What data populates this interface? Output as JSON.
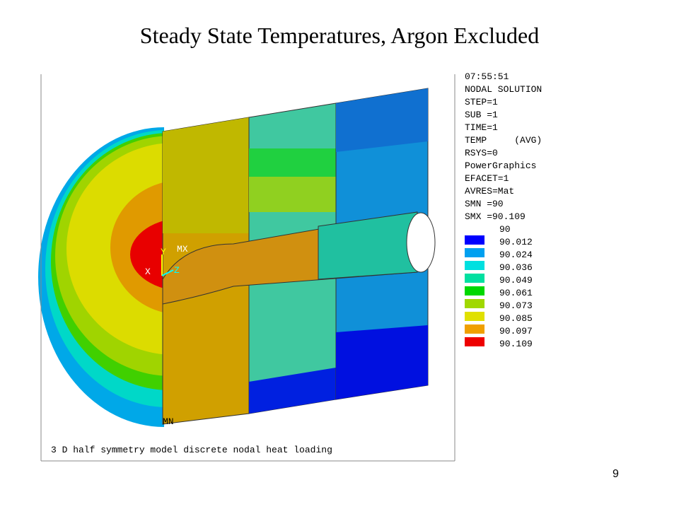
{
  "title": "Steady State Temperatures, Argon Excluded",
  "plot": {
    "info": [
      "07:55:51",
      "NODAL SOLUTION",
      "STEP=1",
      "SUB =1",
      "TIME=1",
      "TEMP     (AVG)",
      "RSYS=0",
      "PowerGraphics",
      "EFACET=1",
      "AVRES=Mat",
      "SMN =90",
      "SMX =90.109"
    ],
    "legend": {
      "levels": [
        "90",
        "90.012",
        "90.024",
        "90.036",
        "90.049",
        "90.061",
        "90.073",
        "90.085",
        "90.097",
        "90.109"
      ],
      "colors": [
        "#0000ff",
        "#00a0f0",
        "#00e0e0",
        "#00e0a0",
        "#00d800",
        "#a0d800",
        "#e0e000",
        "#f0a000",
        "#ee0000"
      ]
    },
    "markers": {
      "max": "MX",
      "min": "MN",
      "axis_y": "Y",
      "axis_x": "X",
      "axis_z": "Z"
    },
    "caption": "3 D half symmetry model discrete nodal heat loading"
  },
  "page_number": "9"
}
